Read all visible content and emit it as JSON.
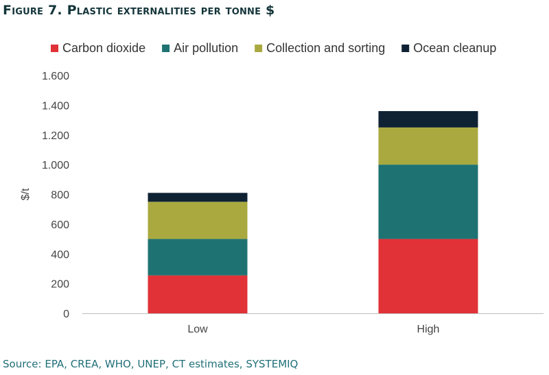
{
  "figure": {
    "title_prefix": "F",
    "title_rest": "igure 7. Plastic externalities per tonne $",
    "source": "Source: EPA, CREA, WHO, UNEP, CT estimates, SYSTEMIQ"
  },
  "chart_data": {
    "type": "bar",
    "stacked": true,
    "categories": [
      "Low",
      "High"
    ],
    "series": [
      {
        "name": "Carbon dioxide",
        "color": "#e03237",
        "values": [
          255,
          500
        ]
      },
      {
        "name": "Air pollution",
        "color": "#1f7272",
        "values": [
          245,
          500
        ]
      },
      {
        "name": "Collection and sorting",
        "color": "#a9a940",
        "values": [
          250,
          250
        ]
      },
      {
        "name": "Ocean cleanup",
        "color": "#0f2234",
        "values": [
          60,
          110
        ]
      }
    ],
    "ylabel": "$/t",
    "ylim": [
      0,
      1600
    ],
    "yticks": [
      0,
      200,
      400,
      600,
      800,
      1000,
      1200,
      1400,
      1600
    ],
    "ytick_labels": [
      "0",
      "200",
      "400",
      "600",
      "800",
      "1.000",
      "1.200",
      "1.400",
      "1.600"
    ],
    "grid": false,
    "legend_position": "top"
  }
}
